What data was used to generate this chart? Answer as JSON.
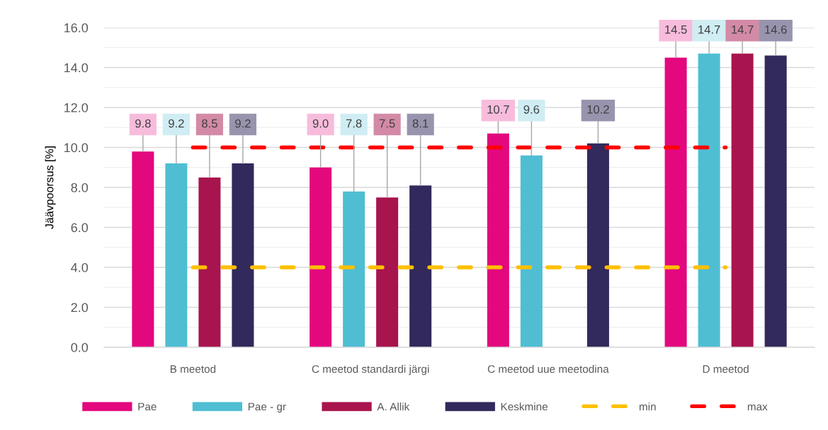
{
  "chart_data": {
    "type": "bar",
    "ylabel": "Jäävpoorsus [%]",
    "categories": [
      "B meetod",
      "C meetod standardi järgi",
      "C meetod uue meetodina",
      "D meetod"
    ],
    "series": [
      {
        "name": "Pae",
        "color": "#e3087e",
        "values": [
          9.8,
          9.0,
          10.7,
          14.5
        ],
        "value_labels": [
          "9.8",
          "9.0",
          "10.7",
          "14.5"
        ]
      },
      {
        "name": "Pae - gr",
        "color": "#4fbed3",
        "values": [
          9.2,
          7.8,
          9.6,
          14.7
        ],
        "value_labels": [
          "9.2",
          "7.8",
          "9.6",
          "14.7"
        ]
      },
      {
        "name": "A. Allik",
        "color": "#a8144e",
        "values": [
          8.5,
          7.5,
          null,
          14.7
        ],
        "value_labels": [
          "8.5",
          "7.5",
          null,
          "14.7"
        ]
      },
      {
        "name": "Keskmine",
        "color": "#32295c",
        "values": [
          9.2,
          8.1,
          10.2,
          14.6
        ],
        "value_labels": [
          "9.2",
          "8.1",
          "10.2",
          "14.6"
        ]
      },
      {
        "name": "min",
        "type": "line",
        "color": "#ffc000",
        "values": [
          4,
          4,
          4,
          4
        ]
      },
      {
        "name": "max",
        "type": "line",
        "color": "#ff0000",
        "values": [
          10,
          10,
          10,
          10
        ]
      }
    ],
    "ylim": [
      0,
      16
    ],
    "yticks": [
      {
        "value": 0,
        "label": "0.0"
      },
      {
        "value": 1,
        "label": null
      },
      {
        "value": 2,
        "label": "2.0"
      },
      {
        "value": 3,
        "label": null
      },
      {
        "value": 4,
        "label": "4.0"
      },
      {
        "value": 5,
        "label": null
      },
      {
        "value": 6,
        "label": "6.0"
      },
      {
        "value": 7,
        "label": null
      },
      {
        "value": 8,
        "label": "8.0"
      },
      {
        "value": 9,
        "label": null
      },
      {
        "value": 10,
        "label": "10.0"
      },
      {
        "value": 11,
        "label": null
      },
      {
        "value": 12,
        "label": "12.0"
      },
      {
        "value": 13,
        "label": null
      },
      {
        "value": 14,
        "label": "14.0"
      },
      {
        "value": 15,
        "label": null
      },
      {
        "value": 16,
        "label": "16.0"
      }
    ],
    "grid": "y",
    "legend": "bottom",
    "line_style": "dashed"
  }
}
